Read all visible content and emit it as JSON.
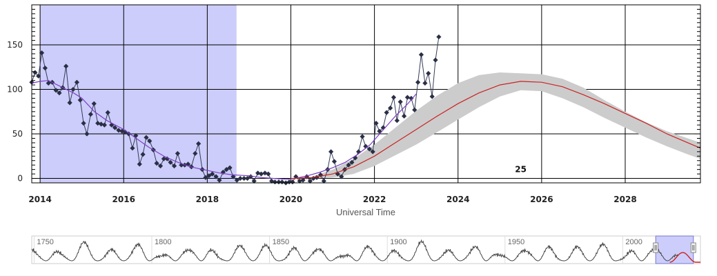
{
  "chart_data": {
    "type": "line",
    "xlabel": "Universal Time",
    "ylabel": "",
    "xlim": [
      2013.8,
      2029.8
    ],
    "ylim": [
      -5,
      195
    ],
    "x_ticks": [
      "2014",
      "2016",
      "2018",
      "2020",
      "2022",
      "2024",
      "2026",
      "2028"
    ],
    "y_ticks": [
      "0",
      "50",
      "100",
      "150"
    ],
    "highlight_range": [
      2014.0,
      2018.7
    ],
    "cycle_label": {
      "text": "25",
      "x": 2025.5,
      "y": 7
    },
    "series": [
      {
        "kind": "monthly",
        "color": "#333a55",
        "points": [
          [
            2013.8,
            108
          ],
          [
            2013.88,
            119
          ],
          [
            2013.96,
            115
          ],
          [
            2014.04,
            141
          ],
          [
            2014.12,
            124
          ],
          [
            2014.2,
            107
          ],
          [
            2014.29,
            108
          ],
          [
            2014.38,
            99
          ],
          [
            2014.46,
            96
          ],
          [
            2014.54,
            102
          ],
          [
            2014.62,
            126
          ],
          [
            2014.71,
            85
          ],
          [
            2014.79,
            100
          ],
          [
            2014.88,
            108
          ],
          [
            2014.96,
            88
          ],
          [
            2015.04,
            62
          ],
          [
            2015.12,
            50
          ],
          [
            2015.21,
            72
          ],
          [
            2015.29,
            84
          ],
          [
            2015.38,
            62
          ],
          [
            2015.46,
            61
          ],
          [
            2015.54,
            60
          ],
          [
            2015.62,
            74
          ],
          [
            2015.71,
            60
          ],
          [
            2015.79,
            57
          ],
          [
            2015.88,
            54
          ],
          [
            2015.96,
            53
          ],
          [
            2016.04,
            52
          ],
          [
            2016.12,
            50
          ],
          [
            2016.21,
            34
          ],
          [
            2016.29,
            48
          ],
          [
            2016.38,
            16
          ],
          [
            2016.46,
            27
          ],
          [
            2016.54,
            46
          ],
          [
            2016.62,
            42
          ],
          [
            2016.71,
            32
          ],
          [
            2016.79,
            17
          ],
          [
            2016.88,
            14
          ],
          [
            2016.96,
            22
          ],
          [
            2017.04,
            22
          ],
          [
            2017.12,
            18
          ],
          [
            2017.21,
            14
          ],
          [
            2017.29,
            28
          ],
          [
            2017.38,
            15
          ],
          [
            2017.46,
            15
          ],
          [
            2017.54,
            16
          ],
          [
            2017.62,
            13
          ],
          [
            2017.71,
            28
          ],
          [
            2017.79,
            39
          ],
          [
            2017.88,
            10
          ],
          [
            2017.96,
            1
          ],
          [
            2018.04,
            3
          ],
          [
            2018.12,
            5
          ],
          [
            2018.21,
            2
          ],
          [
            2018.29,
            -2
          ],
          [
            2018.38,
            7
          ],
          [
            2018.46,
            10
          ],
          [
            2018.54,
            12
          ],
          [
            2018.62,
            2
          ],
          [
            2018.71,
            -2
          ],
          [
            2018.79,
            0
          ],
          [
            2018.88,
            0
          ],
          [
            2018.96,
            0
          ],
          [
            2019.04,
            2
          ],
          [
            2019.12,
            -3
          ],
          [
            2019.21,
            6
          ],
          [
            2019.29,
            5
          ],
          [
            2019.38,
            6
          ],
          [
            2019.46,
            5
          ],
          [
            2019.54,
            -3
          ],
          [
            2019.62,
            -4
          ],
          [
            2019.71,
            -4
          ],
          [
            2019.79,
            -4
          ],
          [
            2019.88,
            -5
          ],
          [
            2019.96,
            -4
          ],
          [
            2020.04,
            -4
          ],
          [
            2020.12,
            2
          ],
          [
            2020.21,
            -3
          ],
          [
            2020.29,
            -2
          ],
          [
            2020.38,
            2
          ],
          [
            2020.46,
            -3
          ],
          [
            2020.54,
            0
          ],
          [
            2020.62,
            1
          ],
          [
            2020.71,
            4
          ],
          [
            2020.79,
            -3
          ],
          [
            2020.88,
            10
          ],
          [
            2020.96,
            30
          ],
          [
            2021.04,
            19
          ],
          [
            2021.12,
            5
          ],
          [
            2021.21,
            2
          ],
          [
            2021.29,
            10
          ],
          [
            2021.38,
            15
          ],
          [
            2021.46,
            18
          ],
          [
            2021.54,
            23
          ],
          [
            2021.62,
            30
          ],
          [
            2021.71,
            47
          ],
          [
            2021.79,
            36
          ],
          [
            2021.88,
            33
          ],
          [
            2021.96,
            30
          ],
          [
            2022.04,
            62
          ],
          [
            2022.12,
            53
          ],
          [
            2022.21,
            57
          ],
          [
            2022.29,
            74
          ],
          [
            2022.38,
            79
          ],
          [
            2022.46,
            91
          ],
          [
            2022.54,
            65
          ],
          [
            2022.62,
            86
          ],
          [
            2022.71,
            70
          ],
          [
            2022.79,
            91
          ],
          [
            2022.88,
            90
          ],
          [
            2022.96,
            77
          ],
          [
            2023.04,
            108
          ],
          [
            2023.12,
            139
          ],
          [
            2023.21,
            107
          ],
          [
            2023.29,
            118
          ],
          [
            2023.38,
            92
          ],
          [
            2023.46,
            133
          ],
          [
            2023.54,
            159
          ]
        ]
      },
      {
        "kind": "smoothed",
        "color": "#7c3fc4",
        "points": [
          [
            2013.8,
            107
          ],
          [
            2014.0,
            109
          ],
          [
            2014.2,
            110
          ],
          [
            2014.5,
            103
          ],
          [
            2014.8,
            96
          ],
          [
            2015.0,
            90
          ],
          [
            2015.3,
            75
          ],
          [
            2015.6,
            65
          ],
          [
            2016.0,
            55
          ],
          [
            2016.3,
            45
          ],
          [
            2016.6,
            35
          ],
          [
            2017.0,
            24
          ],
          [
            2017.3,
            18
          ],
          [
            2017.6,
            13
          ],
          [
            2018.0,
            9
          ],
          [
            2018.3,
            6
          ],
          [
            2018.6,
            4
          ],
          [
            2019.0,
            3
          ],
          [
            2019.3,
            1
          ],
          [
            2019.6,
            0
          ],
          [
            2019.9,
            -1
          ],
          [
            2020.1,
            0
          ],
          [
            2020.4,
            3
          ],
          [
            2020.7,
            7
          ],
          [
            2021.0,
            12
          ],
          [
            2021.3,
            18
          ],
          [
            2021.6,
            27
          ],
          [
            2021.9,
            38
          ],
          [
            2022.2,
            54
          ],
          [
            2022.5,
            70
          ],
          [
            2022.8,
            84
          ],
          [
            2023.0,
            95
          ]
        ]
      },
      {
        "kind": "predicted",
        "color": "#cc2222",
        "points": [
          [
            2020.0,
            0
          ],
          [
            2020.5,
            1
          ],
          [
            2021.0,
            5
          ],
          [
            2021.5,
            13
          ],
          [
            2022.0,
            25
          ],
          [
            2022.5,
            40
          ],
          [
            2023.0,
            55
          ],
          [
            2023.5,
            70
          ],
          [
            2024.0,
            84
          ],
          [
            2024.5,
            96
          ],
          [
            2025.0,
            105
          ],
          [
            2025.5,
            109
          ],
          [
            2026.0,
            108
          ],
          [
            2026.5,
            103
          ],
          [
            2027.0,
            94
          ],
          [
            2027.5,
            84
          ],
          [
            2028.0,
            73
          ],
          [
            2028.5,
            62
          ],
          [
            2029.0,
            50
          ],
          [
            2029.5,
            40
          ],
          [
            2029.8,
            34
          ]
        ]
      }
    ],
    "prediction_band": {
      "color": "#cccccc",
      "upper": [
        [
          2020.5,
          2
        ],
        [
          2021.0,
          10
        ],
        [
          2021.5,
          22
        ],
        [
          2022.0,
          38
        ],
        [
          2022.5,
          57
        ],
        [
          2023.0,
          76
        ],
        [
          2023.5,
          93
        ],
        [
          2024.0,
          107
        ],
        [
          2024.5,
          116
        ],
        [
          2025.0,
          119
        ],
        [
          2025.5,
          118
        ],
        [
          2026.0,
          117
        ],
        [
          2026.5,
          112
        ],
        [
          2027.0,
          102
        ],
        [
          2027.5,
          88
        ],
        [
          2028.0,
          75
        ],
        [
          2028.5,
          63
        ],
        [
          2029.0,
          53
        ],
        [
          2029.5,
          45
        ],
        [
          2029.8,
          40
        ]
      ],
      "lower": [
        [
          2020.5,
          0
        ],
        [
          2021.0,
          1
        ],
        [
          2021.5,
          5
        ],
        [
          2022.0,
          14
        ],
        [
          2022.5,
          26
        ],
        [
          2023.0,
          38
        ],
        [
          2023.5,
          52
        ],
        [
          2024.0,
          66
        ],
        [
          2024.5,
          80
        ],
        [
          2025.0,
          92
        ],
        [
          2025.5,
          99
        ],
        [
          2026.0,
          98
        ],
        [
          2026.5,
          90
        ],
        [
          2027.0,
          80
        ],
        [
          2027.5,
          68
        ],
        [
          2028.0,
          57
        ],
        [
          2028.5,
          46
        ],
        [
          2029.0,
          36
        ],
        [
          2029.5,
          27
        ],
        [
          2029.8,
          22
        ]
      ]
    },
    "navigator": {
      "xlim": [
        1749,
        2033
      ],
      "ticks": [
        "1750",
        "1800",
        "1850",
        "1900",
        "1950",
        "2000"
      ],
      "selection": [
        2014,
        2030
      ],
      "cycle_period_years": 11,
      "cycle_start": 1755
    }
  }
}
